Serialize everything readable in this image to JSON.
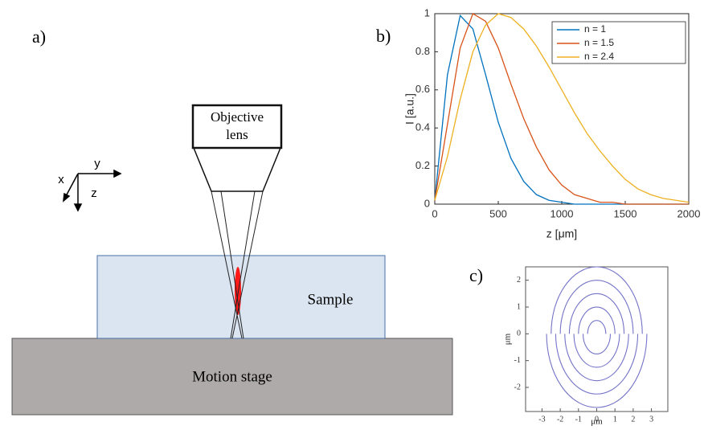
{
  "panel_labels": [
    "a)",
    "b)",
    "c)"
  ],
  "diagram": {
    "objective_lens": [
      "Objective",
      "lens"
    ],
    "sample": "Sample",
    "motion_stage": "Motion stage",
    "axes": {
      "x": "x",
      "y": "y",
      "z": "z"
    }
  },
  "chart_data": [
    {
      "type": "line",
      "x": [
        0,
        100,
        200,
        300,
        400,
        500,
        600,
        700,
        800,
        900,
        1000,
        1100,
        1200,
        1300,
        1400,
        1500,
        1600,
        1700,
        1800,
        1900,
        2000
      ],
      "series": [
        {
          "name": "n = 1",
          "color": "#0072bd",
          "values": [
            0.02,
            0.68,
            0.99,
            0.92,
            0.68,
            0.43,
            0.24,
            0.12,
            0.05,
            0.02,
            0.01,
            0,
            0,
            0,
            0,
            0,
            0,
            0,
            0,
            0,
            0
          ]
        },
        {
          "name": "n = 1.5",
          "color": "#d95319",
          "values": [
            0.02,
            0.42,
            0.82,
            1.0,
            0.96,
            0.82,
            0.63,
            0.45,
            0.3,
            0.18,
            0.1,
            0.05,
            0.03,
            0.01,
            0.01,
            0,
            0,
            0,
            0,
            0,
            0
          ]
        },
        {
          "name": "n = 2.4",
          "color": "#edb120",
          "values": [
            0.02,
            0.25,
            0.55,
            0.8,
            0.94,
            1.0,
            0.98,
            0.92,
            0.83,
            0.72,
            0.6,
            0.48,
            0.37,
            0.28,
            0.2,
            0.13,
            0.08,
            0.05,
            0.03,
            0.02,
            0.01
          ]
        }
      ],
      "xlim": [
        0,
        2000
      ],
      "ylim": [
        0,
        1
      ],
      "xticks": [
        0,
        500,
        1000,
        1500,
        2000
      ],
      "yticks": [
        0,
        0.2,
        0.4,
        0.6,
        0.8,
        1
      ],
      "xlabel": "z [μm]",
      "ylabel": "I [a.u.]",
      "legend": "upper right"
    },
    {
      "type": "semicircles",
      "upper_radii": [
        0.5,
        1,
        1.5,
        2,
        2.5
      ],
      "lower_radii": [
        0.75,
        1.25,
        1.75,
        2.25,
        2.75
      ],
      "color": "#7474c8",
      "xlim": [
        -3.9,
        3.9
      ],
      "ylim": [
        -2.9,
        2.5
      ],
      "xticks": [
        -3,
        -2,
        -1,
        0,
        1,
        2,
        3
      ],
      "yticks": [
        -2,
        -1,
        0,
        1,
        2
      ],
      "xlabel": "μm",
      "ylabel": "μm"
    }
  ]
}
